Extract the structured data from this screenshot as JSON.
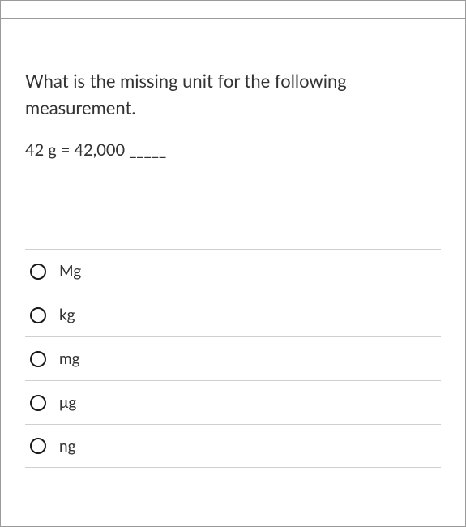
{
  "question": {
    "prompt": "What is the missing unit for the following measurement.",
    "equation": "42 g = 42,000 _____"
  },
  "options": [
    {
      "label": "Mg"
    },
    {
      "label": "kg"
    },
    {
      "label": "mg"
    },
    {
      "label": "μg"
    },
    {
      "label": "ng"
    }
  ],
  "styling": {
    "border_color": "#9a9a9a",
    "option_divider_color": "#cfcfcf",
    "text_color": "#333333",
    "radio_border_color": "#1a1a1a",
    "background_color": "#ffffff",
    "question_fontsize": 22,
    "equation_fontsize": 20,
    "option_fontsize": 19,
    "radio_diameter": 20,
    "option_row_height": 54
  }
}
